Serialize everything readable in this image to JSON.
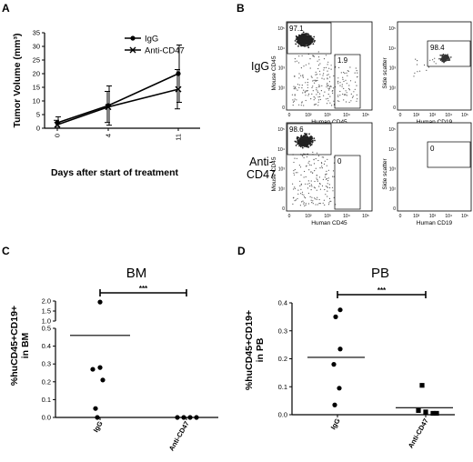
{
  "panels": {
    "a": "A",
    "b": "B",
    "c": "C",
    "d": "D"
  },
  "chart_data": [
    {
      "id": "A",
      "type": "line",
      "xlabel": "Days after start of treatment",
      "ylabel": "Tumor Volume (mm³)",
      "x": [
        0,
        4,
        11
      ],
      "x_ticks": [
        "0",
        "4",
        "11"
      ],
      "ylim": [
        0,
        35
      ],
      "y_ticks": [
        "0",
        "5",
        "10",
        "15",
        "20",
        "25",
        "30",
        "35"
      ],
      "series": [
        {
          "name": "IgG",
          "marker": "dot",
          "values": [
            2.0,
            8.3,
            20.0
          ],
          "err": [
            2.2,
            7.2,
            10.5
          ]
        },
        {
          "name": "Anti-CD47",
          "marker": "x",
          "values": [
            1.3,
            7.8,
            14.3
          ],
          "err": [
            1.6,
            5.7,
            7.2
          ]
        }
      ]
    },
    {
      "id": "C",
      "type": "scatter",
      "title": "BM",
      "ylabel": "%huCD45+CD19+ in BM",
      "categories": [
        "IgG",
        "Anti-CD47"
      ],
      "axis": "broken",
      "y_ticks_lower": [
        "0.0",
        "0.1",
        "0.2",
        "0.3",
        "0.4",
        "0.5"
      ],
      "y_ticks_upper": [
        "1.0",
        "1.5",
        "2.0"
      ],
      "significance": "***",
      "series": [
        {
          "name": "IgG",
          "values": [
            1.95,
            0.28,
            0.27,
            0.21,
            0.05,
            0.0
          ],
          "mean": 0.46
        },
        {
          "name": "Anti-CD47",
          "values": [
            0.0,
            0.0,
            0.0,
            0.0
          ],
          "mean": 0.0
        }
      ]
    },
    {
      "id": "D",
      "type": "scatter",
      "title": "PB",
      "ylabel": "%huCD45+CD19+ in PB",
      "categories": [
        "IgG",
        "Anti-CD47"
      ],
      "ylim": [
        0,
        0.4
      ],
      "y_ticks": [
        "0.0",
        "0.1",
        "0.2",
        "0.3",
        "0.4"
      ],
      "significance": "***",
      "series": [
        {
          "name": "IgG",
          "values": [
            0.375,
            0.35,
            0.235,
            0.18,
            0.095,
            0.035
          ],
          "mean": 0.205
        },
        {
          "name": "Anti-CD47",
          "values": [
            0.105,
            0.015,
            0.01,
            0.005,
            0.005
          ],
          "mean": 0.025
        }
      ]
    }
  ],
  "flow": {
    "rows": [
      {
        "label": "IgG",
        "left_gates": [
          "97.1",
          "1.9"
        ],
        "right_gate": "98.4"
      },
      {
        "label": "Anti-CD47",
        "left_gates": [
          "98.6",
          "0"
        ],
        "right_gate": "0"
      }
    ],
    "left_xlabel": "Human CD45",
    "left_ylabel": "Mouse CD45",
    "right_xlabel": "Human CD19",
    "right_ylabel": "Side scatter",
    "x_ticks": [
      "0",
      "10²",
      "10³",
      "10⁴",
      "10⁵"
    ],
    "y_ticks": [
      "0",
      "10²",
      "10³",
      "10⁴",
      "10⁵"
    ]
  }
}
